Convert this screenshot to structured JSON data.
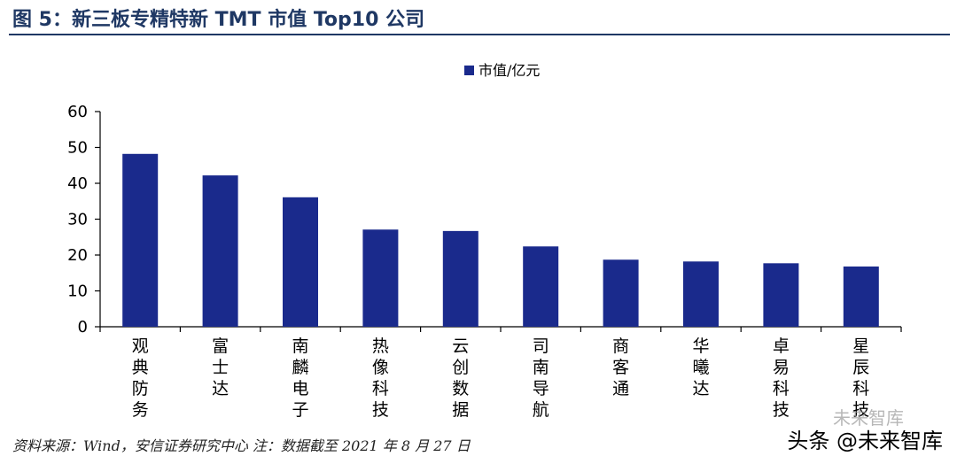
{
  "title": "图 5：新三板专精特新 TMT 市值 Top10 公司",
  "source_note": "资料来源：Wind，安信证券研究中心  注：数据截至 2021 年 8 月 27 日",
  "watermark": "头条 @未来智库",
  "watermark_secondary": "未来智库",
  "colors": {
    "bar": "#1a2a8c",
    "title": "#1f3864",
    "axis": "#000000"
  },
  "chart_data": {
    "type": "bar",
    "categories": [
      "观典防务",
      "富士达",
      "南麟电子",
      "热像科技",
      "云创数据",
      "司南导航",
      "商客通",
      "华曦达",
      "卓易科技",
      "星辰科技"
    ],
    "series": [
      {
        "name": "市值/亿元",
        "values": [
          48.2,
          42.2,
          36.1,
          27.1,
          26.7,
          22.4,
          18.7,
          18.2,
          17.7,
          16.8
        ]
      }
    ],
    "yticks": [
      0,
      10,
      20,
      30,
      40,
      50,
      60
    ],
    "ylim": [
      0,
      60
    ],
    "legend_position": "top-center",
    "grid": false
  }
}
